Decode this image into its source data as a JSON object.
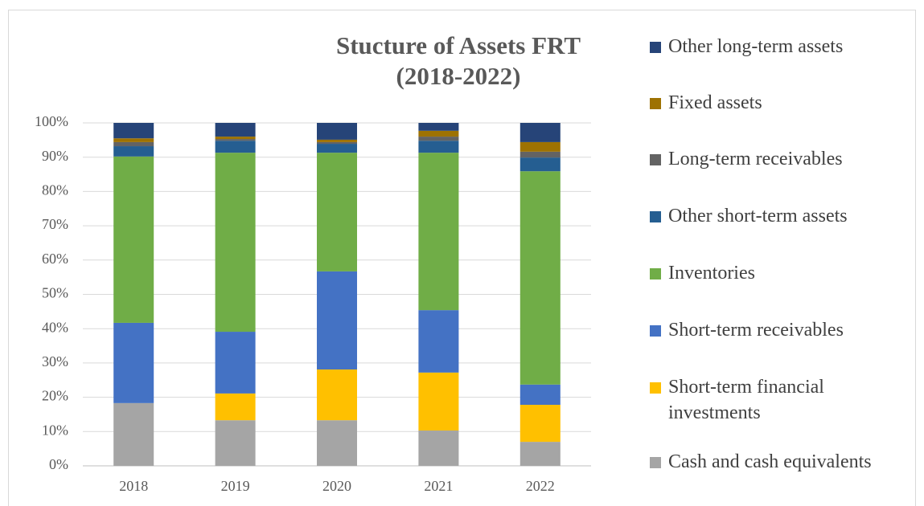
{
  "chart_data": {
    "type": "stacked_bar",
    "title": "Stucture of Assets FRT (2018-2022)",
    "categories": [
      "2018",
      "2019",
      "2020",
      "2021",
      "2022"
    ],
    "series": [
      {
        "name": "Cash and cash equivalents",
        "color": "#a5a5a5",
        "values": [
          18.3,
          13.3,
          13.3,
          10.3,
          7.0
        ]
      },
      {
        "name": "Short-term financial investments",
        "color": "#ffc000",
        "values": [
          0,
          7.8,
          14.8,
          16.9,
          10.8
        ]
      },
      {
        "name": "Short-term receivables",
        "color": "#4472c4",
        "values": [
          23.4,
          18.0,
          28.6,
          18.2,
          5.9
        ]
      },
      {
        "name": "Inventories",
        "color": "#70ad47",
        "values": [
          48.5,
          52.2,
          34.6,
          45.9,
          62.2
        ]
      },
      {
        "name": "Other short-term assets",
        "color": "#255e91",
        "values": [
          3.0,
          3.5,
          2.6,
          3.5,
          4.0
        ]
      },
      {
        "name": "Long-term receivables",
        "color": "#636363",
        "values": [
          1.2,
          0.5,
          0.5,
          1.2,
          1.7
        ]
      },
      {
        "name": "Fixed assets",
        "color": "#9e7202",
        "values": [
          1.1,
          0.7,
          0.7,
          1.7,
          2.8
        ]
      },
      {
        "name": "Other long-term assets",
        "color": "#264478",
        "values": [
          4.5,
          4.0,
          4.9,
          2.3,
          5.6
        ]
      }
    ],
    "ylim": [
      0,
      100
    ],
    "yticks": [
      {
        "value": 0,
        "label": "0%"
      },
      {
        "value": 10,
        "label": "10%"
      },
      {
        "value": 20,
        "label": "20%"
      },
      {
        "value": 30,
        "label": "30%"
      },
      {
        "value": 40,
        "label": "40%"
      },
      {
        "value": 50,
        "label": "50%"
      },
      {
        "value": 60,
        "label": "60%"
      },
      {
        "value": 70,
        "label": "70%"
      },
      {
        "value": 80,
        "label": "80%"
      },
      {
        "value": 90,
        "label": "90%"
      },
      {
        "value": 100,
        "label": "100%"
      }
    ],
    "grid": true,
    "legend": "right"
  }
}
